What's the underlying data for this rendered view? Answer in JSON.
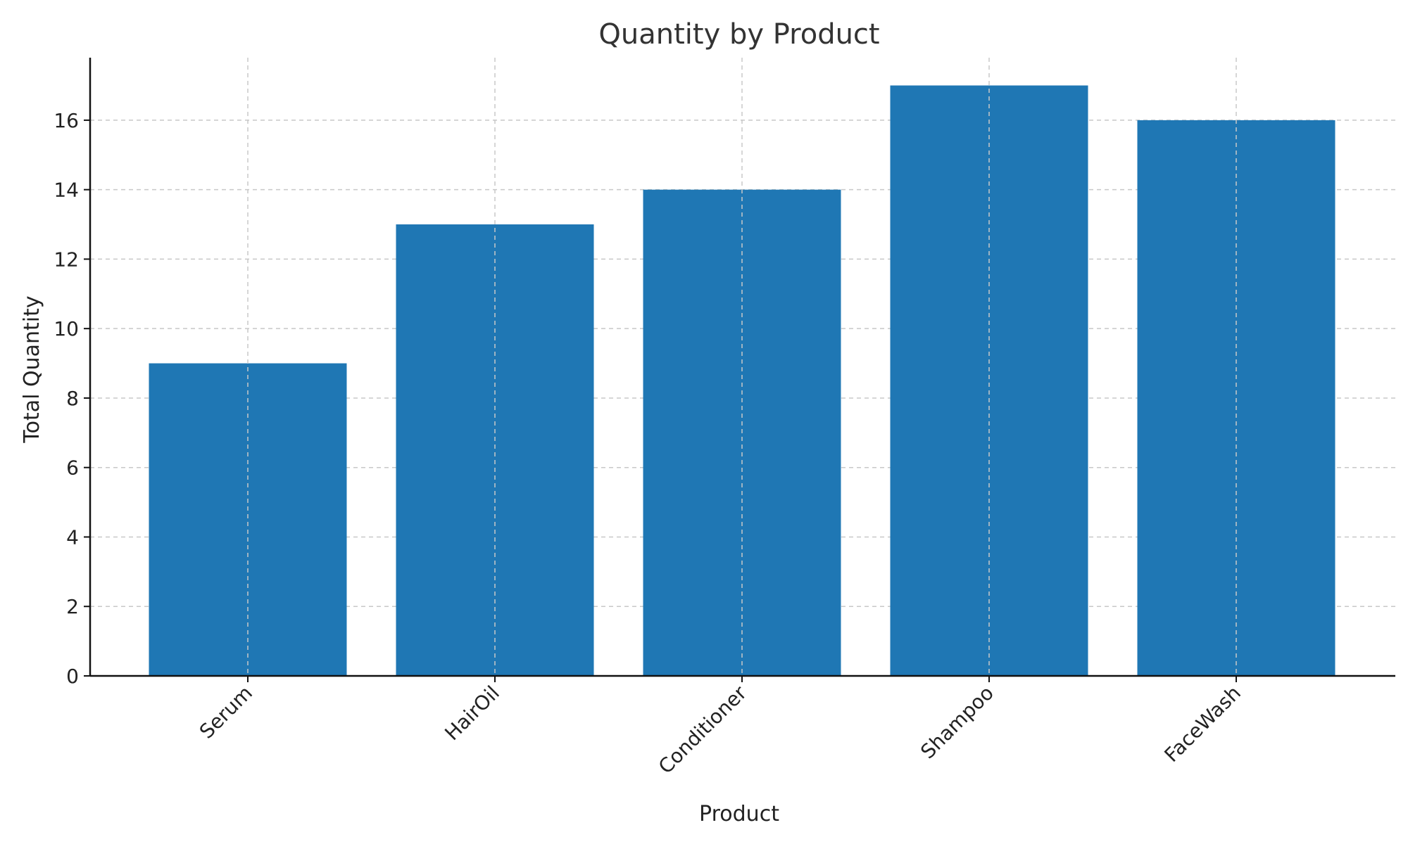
{
  "chart_data": {
    "type": "bar",
    "title": "Quantity by Product",
    "xlabel": "Product",
    "ylabel": "Total Quantity",
    "categories": [
      "Serum",
      "HairOil",
      "Conditioner",
      "Shampoo",
      "FaceWash"
    ],
    "values": [
      9,
      13,
      14,
      17,
      16
    ],
    "ylim": [
      0,
      17.8
    ],
    "yticks": [
      0,
      2,
      4,
      6,
      8,
      10,
      12,
      14,
      16
    ],
    "grid": true,
    "bar_color": "#1f77b4"
  }
}
